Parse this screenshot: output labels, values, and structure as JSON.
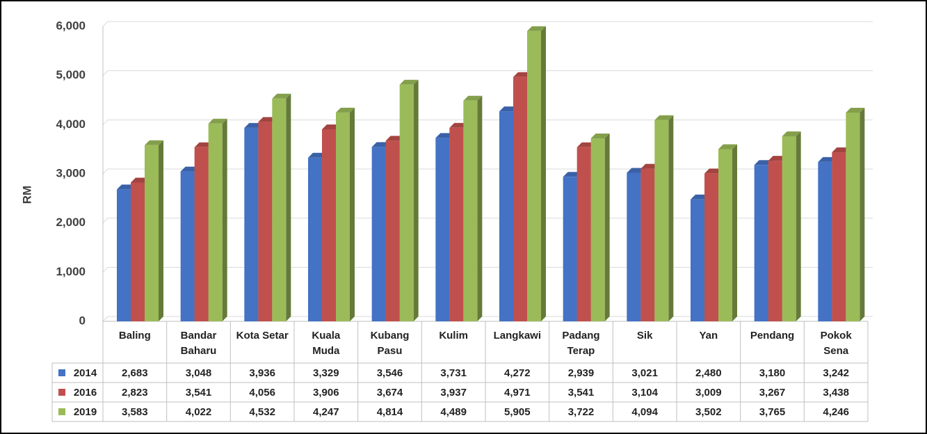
{
  "chart_data": {
    "type": "bar",
    "y_label": "RM",
    "categories": [
      "Baling",
      "Bandar Baharu",
      "Kota Setar",
      "Kuala Muda",
      "Kubang Pasu",
      "Kulim",
      "Langkawi",
      "Padang Terap",
      "Sik",
      "Yan",
      "Pendang",
      "Pokok Sena"
    ],
    "series": [
      {
        "name": "2014",
        "color": "#4472c4",
        "values": [
          2683,
          3048,
          3936,
          3329,
          3546,
          3731,
          4272,
          2939,
          3021,
          2480,
          3180,
          3242
        ],
        "value_labels": [
          "2,683",
          "3,048",
          "3,936",
          "3,329",
          "3,546",
          "3,731",
          "4,272",
          "2,939",
          "3,021",
          "2,480",
          "3,180",
          "3,242"
        ]
      },
      {
        "name": "2016",
        "color": "#c0504d",
        "values": [
          2823,
          3541,
          4056,
          3906,
          3674,
          3937,
          4971,
          3541,
          3104,
          3009,
          3267,
          3438
        ],
        "value_labels": [
          "2,823",
          "3,541",
          "4,056",
          "3,906",
          "3,674",
          "3,937",
          "4,971",
          "3,541",
          "3,104",
          "3,009",
          "3,267",
          "3,438"
        ]
      },
      {
        "name": "2019",
        "color": "#9bbb59",
        "values": [
          3583,
          4022,
          4532,
          4247,
          4814,
          4489,
          5905,
          3722,
          4094,
          3502,
          3765,
          4246
        ],
        "value_labels": [
          "3,583",
          "4,022",
          "4,532",
          "4,247",
          "4,814",
          "4,489",
          "5,905",
          "3,722",
          "4,094",
          "3,502",
          "3,765",
          "4,246"
        ]
      }
    ],
    "ylim": [
      0,
      6000
    ],
    "yticks": [
      0,
      {
        "value": 1000,
        "label": "1,000"
      },
      {
        "value": 2000,
        "label": "2,000"
      },
      {
        "value": 3000,
        "label": "3,000"
      },
      {
        "value": 4000,
        "label": "4,000"
      },
      {
        "value": 5000,
        "label": "5,000"
      },
      {
        "value": 6000,
        "label": "6,000"
      }
    ],
    "grid": true
  }
}
